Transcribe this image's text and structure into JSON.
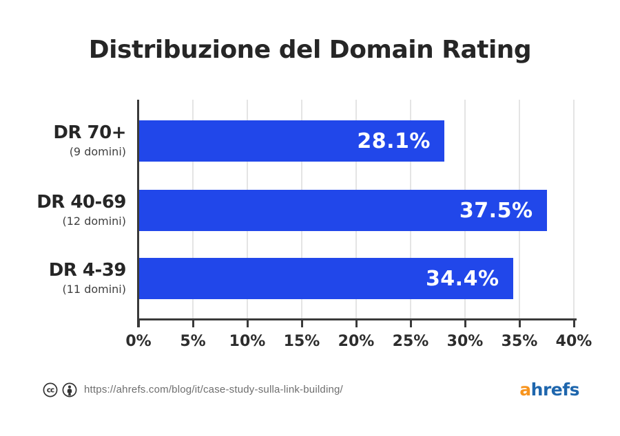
{
  "title": "Distribuzione del Domain Rating",
  "chart_data": {
    "type": "bar",
    "orientation": "horizontal",
    "title": "Distribuzione del Domain Rating",
    "categories": [
      "DR 70+",
      "DR 40-69",
      "DR 4-39"
    ],
    "category_sublabels": [
      "(9 domini)",
      "(12 domini)",
      "(11 domini)"
    ],
    "values": [
      28.1,
      37.5,
      34.4
    ],
    "value_labels": [
      "28.1%",
      "37.5%",
      "34.4%"
    ],
    "xlim": [
      0,
      40
    ],
    "x_tick_labels": [
      "0%",
      "5%",
      "10%",
      "15%",
      "20%",
      "25%",
      "30%",
      "35%",
      "40%"
    ],
    "grid": true,
    "legend": false
  },
  "colors": {
    "background": "#FFFFFF",
    "bar": "#2147EA",
    "bar_value_text": "#FFFFFF",
    "axis": "#3A3A3A",
    "gridline": "#E4E4E4",
    "title_text": "#262626",
    "category_text": "#262626",
    "sublabel_text": "#404040",
    "tick_text": "#2D2D2D",
    "url_text": "#6E6E6E",
    "icon": "#333333",
    "logo_a": "#F7941E",
    "logo_hrefs": "#1E66AD"
  },
  "footer": {
    "cc_icon": "creative-commons-icon",
    "by_icon": "attribution-icon",
    "url": "https://ahrefs.com/blog/it/case-study-sulla-link-building/",
    "logo_part1": "a",
    "logo_part2": "hrefs"
  }
}
